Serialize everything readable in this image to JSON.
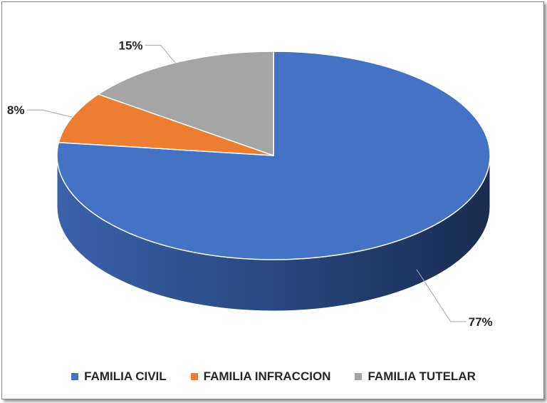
{
  "chart_data": {
    "type": "pie",
    "title": "",
    "style": "3d",
    "categories": [
      "FAMILIA CIVIL",
      "FAMILIA INFRACCION",
      "FAMILIA TUTELAR"
    ],
    "values": [
      77,
      8,
      15
    ],
    "labels": [
      "77%",
      "8%",
      "15%"
    ],
    "colors": [
      "#4472C4",
      "#ED7D31",
      "#A5A5A5"
    ],
    "legend_position": "bottom"
  }
}
